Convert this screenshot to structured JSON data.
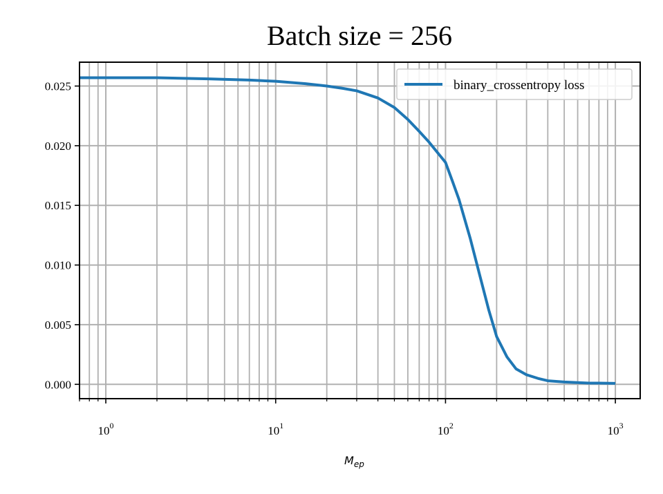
{
  "chart_data": {
    "type": "line",
    "title": "Batch size = 256",
    "xlabel_base": "M",
    "xlabel_sub": "ep",
    "ylabel": "",
    "x_scale": "log",
    "xlim": [
      0.7,
      1400
    ],
    "ylim": [
      -0.0012,
      0.027
    ],
    "grid": true,
    "grid_minor_x": true,
    "legend_position": "top-right",
    "x_major_ticks": [
      {
        "value": 1,
        "base": "10",
        "exp": "0"
      },
      {
        "value": 10,
        "base": "10",
        "exp": "1"
      },
      {
        "value": 100,
        "base": "10",
        "exp": "2"
      },
      {
        "value": 1000,
        "base": "10",
        "exp": "3"
      }
    ],
    "y_ticks": [
      {
        "value": 0.0,
        "label": "0.000"
      },
      {
        "value": 0.005,
        "label": "0.005"
      },
      {
        "value": 0.01,
        "label": "0.010"
      },
      {
        "value": 0.015,
        "label": "0.015"
      },
      {
        "value": 0.02,
        "label": "0.020"
      },
      {
        "value": 0.025,
        "label": "0.025"
      }
    ],
    "series": [
      {
        "name": "binary_crossentropy loss",
        "color": "#1f77b4",
        "x": [
          0.7,
          1,
          2,
          4,
          7,
          10,
          15,
          20,
          25,
          30,
          40,
          50,
          60,
          70,
          80,
          90,
          100,
          110,
          120,
          140,
          160,
          180,
          200,
          230,
          260,
          300,
          350,
          400,
          500,
          600,
          700,
          800,
          1000
        ],
        "y": [
          0.0257,
          0.0257,
          0.0257,
          0.0256,
          0.0255,
          0.0254,
          0.0252,
          0.025,
          0.0248,
          0.0246,
          0.024,
          0.0232,
          0.0222,
          0.0212,
          0.0203,
          0.0194,
          0.0186,
          0.017,
          0.0155,
          0.0122,
          0.009,
          0.0062,
          0.004,
          0.0023,
          0.0013,
          0.0008,
          0.0005,
          0.0003,
          0.0002,
          0.00015,
          0.0001,
          0.0001,
          8e-05
        ]
      }
    ]
  }
}
